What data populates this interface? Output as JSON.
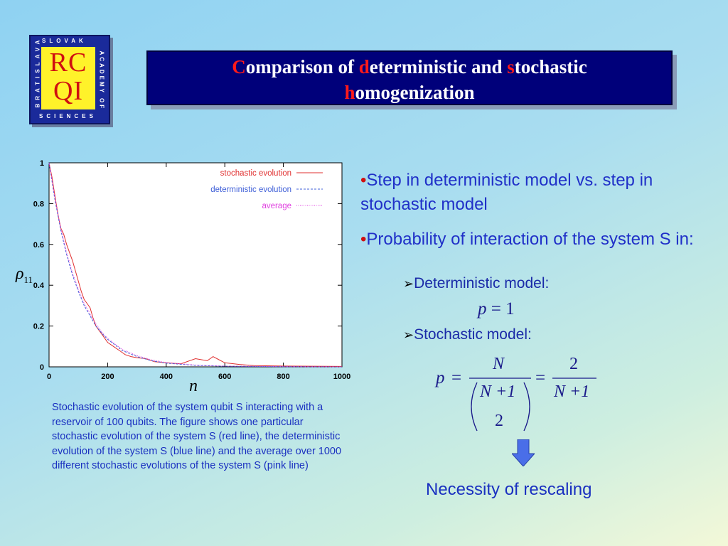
{
  "logo": {
    "letters_line1": "RC",
    "letters_line2": "QI",
    "top_text": "SLOVAK",
    "bottom_text": "SCIENCES",
    "left_text": "BRATISLAVA",
    "right_text": "ACADEMY OF"
  },
  "title": {
    "line1_parts": [
      "C",
      "omparison of ",
      "d",
      "eterministic and ",
      "s",
      "tochastic"
    ],
    "line2_parts": [
      "h",
      "omogenization"
    ]
  },
  "chart_data": {
    "type": "line",
    "xlabel": "n",
    "ylabel": "ρ11",
    "ylabel_symbol": "ρ",
    "ylabel_subscript": "11",
    "xlim": [
      0,
      1000
    ],
    "ylim": [
      0,
      1
    ],
    "xticks": [
      "0",
      "200",
      "400",
      "600",
      "800",
      "1000"
    ],
    "yticks": [
      "0",
      "0.2",
      "0.4",
      "0.6",
      "0.8",
      "1"
    ],
    "legend_position": "top-right",
    "series": [
      {
        "name": "stochastic evolution",
        "color": "#e03030",
        "style": "solid",
        "x": [
          0,
          10,
          20,
          30,
          40,
          50,
          60,
          70,
          80,
          90,
          100,
          110,
          120,
          130,
          140,
          150,
          160,
          170,
          180,
          190,
          200,
          220,
          240,
          260,
          280,
          300,
          330,
          360,
          400,
          450,
          500,
          540,
          560,
          580,
          600,
          650,
          700,
          800,
          900,
          1000
        ],
        "y": [
          1.0,
          0.93,
          0.84,
          0.75,
          0.68,
          0.65,
          0.6,
          0.56,
          0.52,
          0.47,
          0.42,
          0.37,
          0.33,
          0.31,
          0.29,
          0.24,
          0.2,
          0.18,
          0.16,
          0.14,
          0.12,
          0.1,
          0.08,
          0.06,
          0.05,
          0.045,
          0.04,
          0.025,
          0.02,
          0.015,
          0.04,
          0.03,
          0.05,
          0.035,
          0.02,
          0.012,
          0.006,
          0.004,
          0.003,
          0.002
        ]
      },
      {
        "name": "deterministic evolution",
        "color": "#4060d8",
        "style": "dashed",
        "x": [
          0,
          20,
          40,
          60,
          80,
          100,
          120,
          140,
          160,
          180,
          200,
          250,
          300,
          350,
          400,
          500,
          600,
          800,
          1000
        ],
        "y": [
          1.0,
          0.82,
          0.67,
          0.55,
          0.45,
          0.37,
          0.3,
          0.25,
          0.2,
          0.165,
          0.135,
          0.08,
          0.05,
          0.03,
          0.018,
          0.007,
          0.003,
          0.001,
          0.0
        ]
      },
      {
        "name": "average",
        "color": "#e040e0",
        "style": "dotted",
        "x": [
          0,
          20,
          40,
          60,
          80,
          100,
          120,
          140,
          160,
          180,
          200,
          250,
          300,
          350,
          400,
          500,
          600,
          800,
          1000
        ],
        "y": [
          1.0,
          0.83,
          0.68,
          0.56,
          0.46,
          0.38,
          0.31,
          0.26,
          0.21,
          0.17,
          0.14,
          0.085,
          0.055,
          0.034,
          0.021,
          0.009,
          0.004,
          0.001,
          0.0
        ]
      }
    ]
  },
  "caption": "Stochastic evolution of the system qubit S interacting with a reservoir of 100 qubits. The figure shows one particular stochastic evolution of the system S (red line), the deterministic evolution of the system S (blue line) and the average over 1000 different stochastic evolutions of the system S (pink  line)",
  "bullets": [
    {
      "marker": "•",
      "text": "Step in deterministic model vs. step in stochastic model"
    },
    {
      "marker": "•",
      "text": "Probability of interaction of the system S in:"
    }
  ],
  "sub_bullets": [
    {
      "marker": "➢",
      "text": "Deterministic model:"
    },
    {
      "marker": "➢",
      "text": "Stochastic model:"
    }
  ],
  "formula1": {
    "lhs": "p",
    "eq": "=",
    "rhs": "1"
  },
  "formula2": {
    "lhs": "p",
    "eq": "=",
    "frac1_num": "N",
    "binom_top": "N +1",
    "binom_bottom": "2",
    "eq2": "=",
    "frac2_num": "2",
    "frac2_den": "N +1"
  },
  "conclusion": "Necessity of rescaling",
  "colors": {
    "title_bg": "#00007a",
    "title_accent": "#ff1a1a",
    "bullet_text": "#2030c8",
    "logo_blue": "#1a2a9a",
    "logo_yellow": "#fff22a",
    "arrow_fill": "#4a6ee8"
  }
}
